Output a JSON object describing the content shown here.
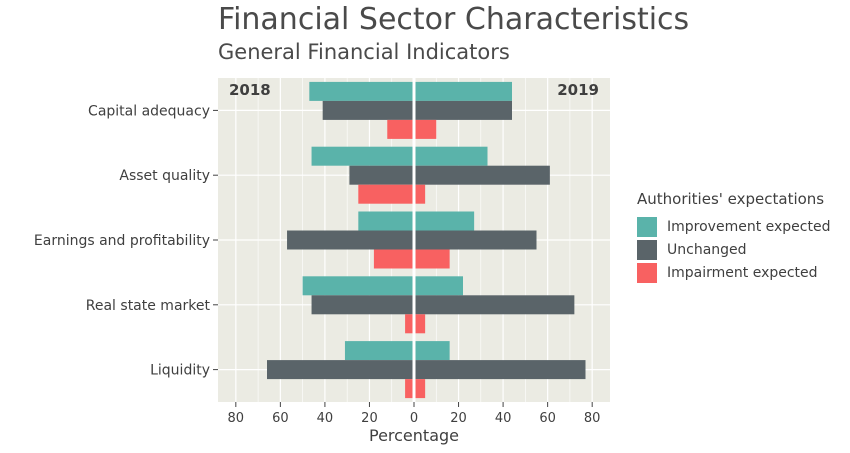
{
  "chart_data": {
    "type": "bar",
    "orientation": "horizontal-diverging",
    "title": "Financial Sector Characteristics",
    "subtitle": "General Financial Indicators",
    "xlabel": "Percentage",
    "xlim": [
      -88,
      88
    ],
    "x_ticks": [
      -80,
      -60,
      -40,
      -20,
      0,
      20,
      40,
      60,
      80
    ],
    "x_tick_labels": [
      "80",
      "60",
      "40",
      "20",
      "0",
      "20",
      "40",
      "60",
      "80"
    ],
    "panel_labels": {
      "left": "2018",
      "right": "2019"
    },
    "categories": [
      "Capital adequacy",
      "Asset quality",
      "Earnings and profitability",
      "Real state market",
      "Liquidity"
    ],
    "legend_title": "Authorities' expectations",
    "legend_position": "right",
    "grid": true,
    "background": "#ebebe3",
    "series": [
      {
        "name": "Improvement expected",
        "color": "#5ab3aa",
        "values_2018": [
          47,
          46,
          25,
          50,
          31
        ],
        "values_2019": [
          44,
          33,
          27,
          22,
          16
        ]
      },
      {
        "name": "Unchanged",
        "color": "#5a6469",
        "values_2018": [
          41,
          29,
          57,
          46,
          66
        ],
        "values_2019": [
          44,
          61,
          55,
          72,
          77
        ]
      },
      {
        "name": "Impairment expected",
        "color": "#f86161",
        "values_2018": [
          12,
          25,
          18,
          4,
          4
        ],
        "values_2019": [
          10,
          5,
          16,
          5,
          5
        ]
      }
    ]
  }
}
